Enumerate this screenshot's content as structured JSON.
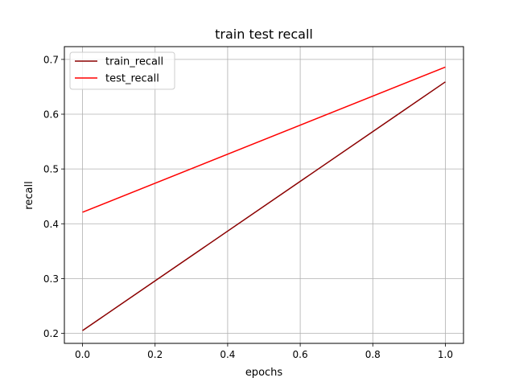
{
  "chart_data": {
    "type": "line",
    "title": "train test recall",
    "xlabel": "epochs",
    "ylabel": "recall",
    "xlim": [
      -0.05,
      1.05
    ],
    "ylim": [
      0.1817,
      0.7233
    ],
    "xticks": [
      0.0,
      0.2,
      0.4,
      0.6,
      0.8,
      1.0
    ],
    "xtick_labels": [
      "0.0",
      "0.2",
      "0.4",
      "0.6",
      "0.8",
      "1.0"
    ],
    "yticks": [
      0.2,
      0.3,
      0.4,
      0.5,
      0.6,
      0.7
    ],
    "ytick_labels": [
      "0.2",
      "0.3",
      "0.4",
      "0.5",
      "0.6",
      "0.7"
    ],
    "grid": true,
    "legend_position": "top-left",
    "series": [
      {
        "name": "train_recall",
        "color": "#8b0000",
        "x": [
          0.0,
          1.0
        ],
        "y": [
          0.205,
          0.659
        ]
      },
      {
        "name": "test_recall",
        "color": "#ff0000",
        "x": [
          0.0,
          1.0
        ],
        "y": [
          0.421,
          0.686
        ]
      }
    ]
  }
}
